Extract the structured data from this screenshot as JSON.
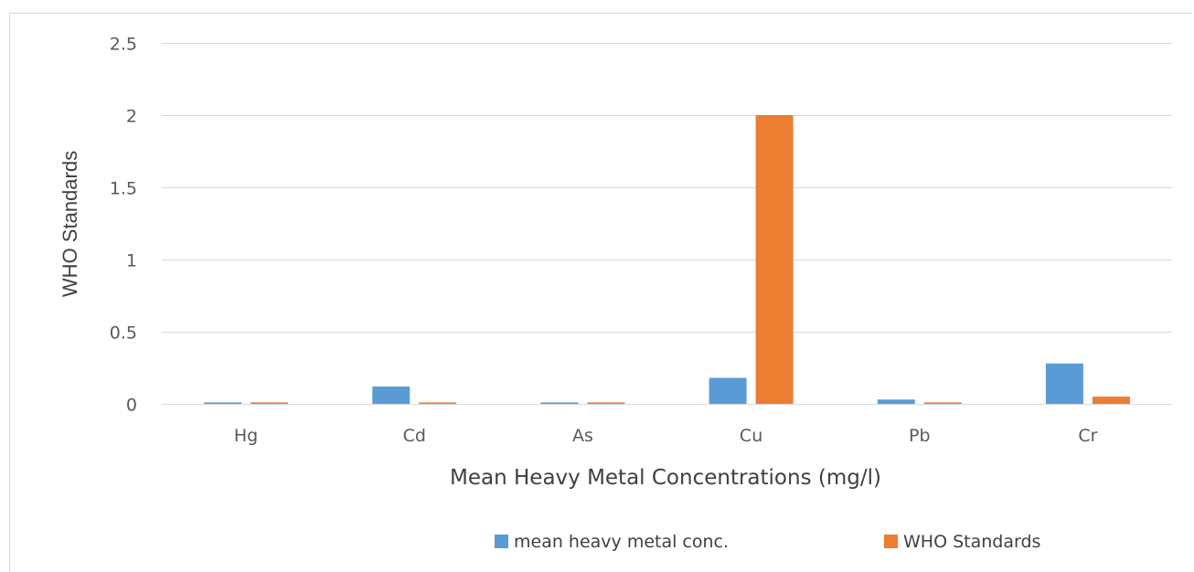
{
  "chart_data": {
    "type": "bar",
    "title": "",
    "xlabel": "Mean Heavy Metal Concentrations (mg/l)",
    "ylabel": "WHO Standards",
    "categories": [
      "Hg",
      "Cd",
      "As",
      "Cu",
      "Pb",
      "Cr"
    ],
    "series": [
      {
        "name": "mean heavy metal conc.",
        "color": "#5b9bd5",
        "values": [
          0.01,
          0.12,
          0.01,
          0.18,
          0.03,
          0.28
        ]
      },
      {
        "name": "WHO Standards",
        "color": "#ed7d31",
        "values": [
          0.01,
          0.01,
          0.01,
          2.0,
          0.01,
          0.05
        ]
      }
    ],
    "ylim": [
      0,
      2.5
    ],
    "yticks": [
      "0",
      "0.5",
      "1",
      "1.5",
      "2",
      "2.5"
    ],
    "grid": true,
    "legend_position": "bottom"
  }
}
